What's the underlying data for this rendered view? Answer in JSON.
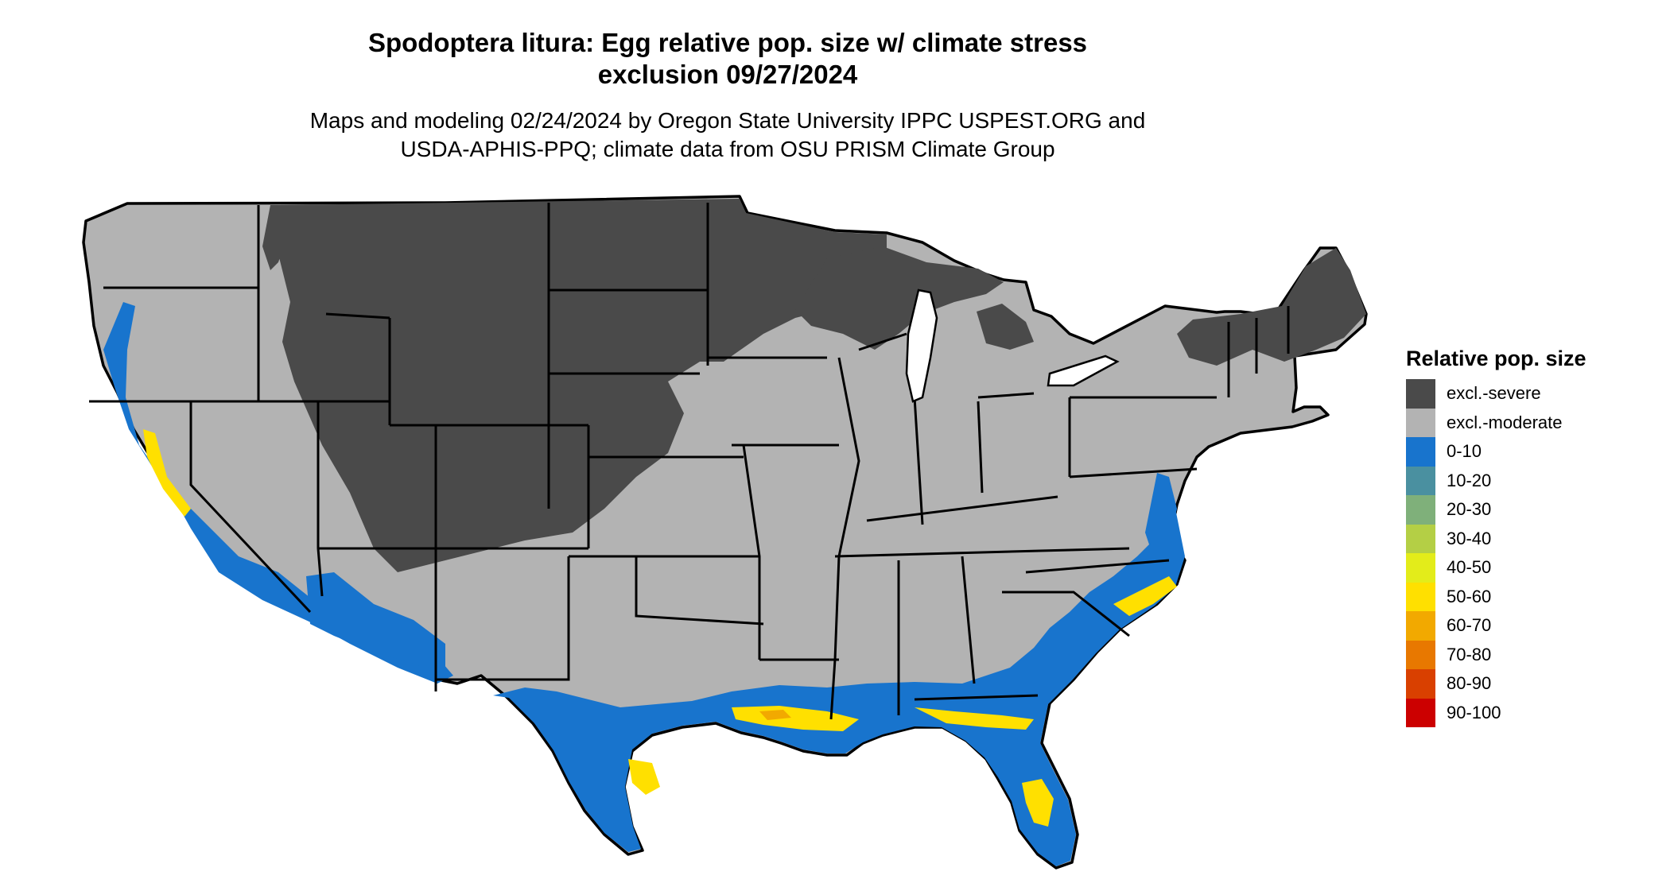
{
  "title_line1": "Spodoptera litura: Egg relative pop. size w/ climate stress",
  "title_line2": "exclusion 09/27/2024",
  "subtitle_line1": "Maps and modeling 02/24/2024 by Oregon State University IPPC USPEST.ORG and",
  "subtitle_line2": "USDA-APHIS-PPQ; climate data from OSU PRISM Climate Group",
  "legend": {
    "title": "Relative pop. size",
    "items": [
      {
        "label": "excl.-severe",
        "color": "#4a4a4a"
      },
      {
        "label": "excl.-moderate",
        "color": "#b3b3b3"
      },
      {
        "label": "0-10",
        "color": "#1874cd"
      },
      {
        "label": "10-20",
        "color": "#4a90a0"
      },
      {
        "label": "20-30",
        "color": "#7fb07a"
      },
      {
        "label": "30-40",
        "color": "#b4cf45"
      },
      {
        "label": "40-50",
        "color": "#e3ec1a"
      },
      {
        "label": "50-60",
        "color": "#ffe000"
      },
      {
        "label": "60-70",
        "color": "#f2a900"
      },
      {
        "label": "70-80",
        "color": "#e87800"
      },
      {
        "label": "80-90",
        "color": "#d94000"
      },
      {
        "label": "90-100",
        "color": "#cc0000"
      }
    ]
  },
  "map": {
    "region": "Contiguous United States",
    "severe_color": "#4a4a4a",
    "moderate_color": "#b3b3b3",
    "low_color": "#1874cd",
    "mid_color": "#ffe000",
    "high_color": "#f2a900",
    "state_border_color": "#000000"
  }
}
